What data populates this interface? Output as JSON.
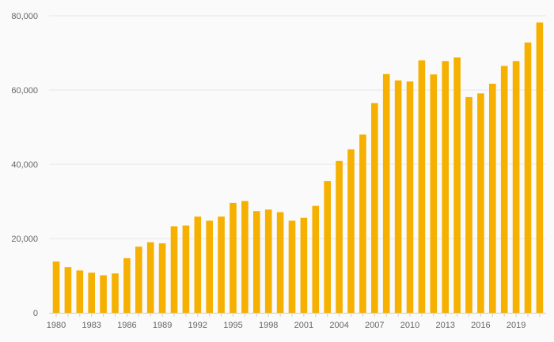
{
  "chart_data": {
    "type": "bar",
    "title": "",
    "xlabel": "",
    "ylabel": "",
    "x": [
      1980,
      1981,
      1982,
      1983,
      1984,
      1985,
      1986,
      1987,
      1988,
      1989,
      1990,
      1991,
      1992,
      1993,
      1994,
      1995,
      1996,
      1997,
      1998,
      1999,
      2000,
      2001,
      2002,
      2003,
      2004,
      2005,
      2006,
      2007,
      2008,
      2009,
      2010,
      2011,
      2012,
      2013,
      2014,
      2015,
      2016,
      2017,
      2018,
      2019,
      2020,
      2021
    ],
    "values": [
      13800,
      12300,
      11400,
      10800,
      10100,
      10600,
      14700,
      17800,
      19000,
      18700,
      23300,
      23500,
      25900,
      24800,
      25900,
      29600,
      30100,
      27400,
      27800,
      27100,
      24800,
      25600,
      28800,
      35500,
      40900,
      44000,
      48000,
      56500,
      64300,
      62600,
      62300,
      68000,
      64200,
      67800,
      68800,
      58100,
      59100,
      61700,
      66500,
      67800,
      72800,
      78200
    ],
    "x_tick_labels": [
      "1980",
      "1983",
      "1986",
      "1989",
      "1992",
      "1995",
      "1998",
      "2001",
      "2004",
      "2007",
      "2010",
      "2013",
      "2016",
      "2019"
    ],
    "y_tick_labels": [
      "0",
      "20,000",
      "40,000",
      "60,000",
      "80,000"
    ],
    "y_ticks": [
      0,
      20000,
      40000,
      60000,
      80000
    ],
    "ylim": [
      0,
      80000
    ],
    "grid": "horizontal",
    "legend": "none",
    "colors": {
      "bar": "#f5b000",
      "grid": "#e6e6e6",
      "axis": "#cccccc",
      "text": "#666666",
      "background": "#fafafa"
    }
  }
}
